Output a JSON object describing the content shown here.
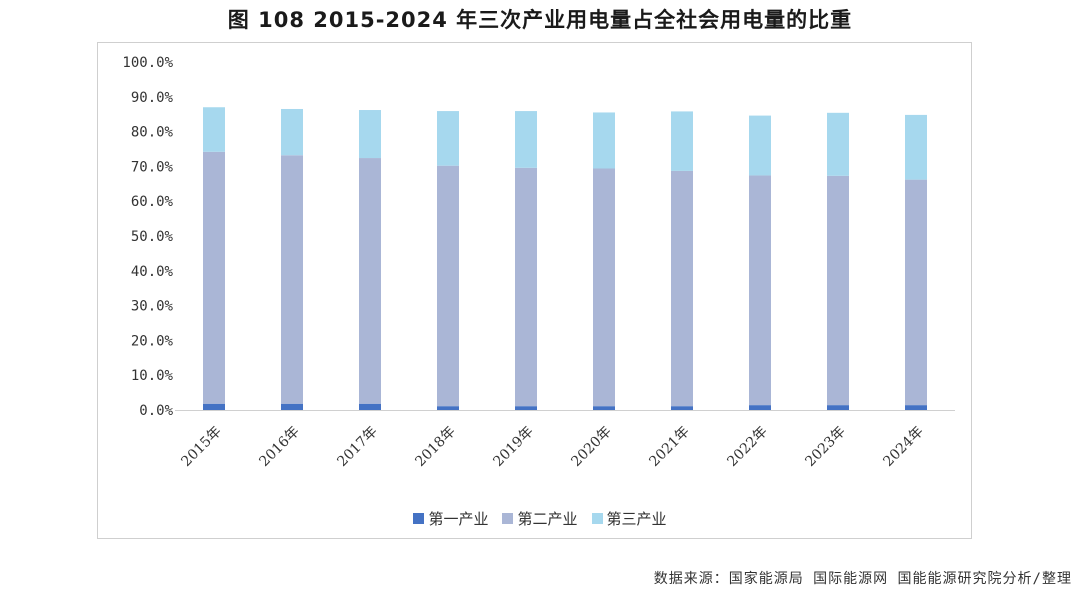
{
  "chart_data": {
    "type": "bar",
    "stacked": true,
    "title": "图 108 2015-2024 年三次产业用电量占全社会用电量的比重",
    "categories": [
      "2015年",
      "2016年",
      "2017年",
      "2018年",
      "2019年",
      "2020年",
      "2021年",
      "2022年",
      "2023年",
      "2024年"
    ],
    "series": [
      {
        "name": "第一产业",
        "color": "#4472c4",
        "values": [
          1.8,
          1.8,
          1.8,
          1.1,
          1.1,
          1.1,
          1.1,
          1.4,
          1.4,
          1.4
        ]
      },
      {
        "name": "第二产业",
        "color": "#aab6d6",
        "values": [
          72.4,
          71.4,
          70.6,
          69.1,
          68.5,
          68.3,
          67.6,
          66.0,
          65.9,
          64.8
        ]
      },
      {
        "name": "第三产业",
        "color": "#a6d8ee",
        "values": [
          12.8,
          13.3,
          13.8,
          15.7,
          16.3,
          16.1,
          17.1,
          17.2,
          18.1,
          18.6
        ]
      }
    ],
    "yticks": [
      "0.0%",
      "10.0%",
      "20.0%",
      "30.0%",
      "40.0%",
      "50.0%",
      "60.0%",
      "70.0%",
      "80.0%",
      "90.0%",
      "100.0%"
    ],
    "ylim": [
      0,
      100
    ],
    "xlabel": "",
    "ylabel": "",
    "legend_position": "bottom"
  },
  "source": "数据来源：国家能源局 国际能源网 国能能源研究院分析/整理"
}
